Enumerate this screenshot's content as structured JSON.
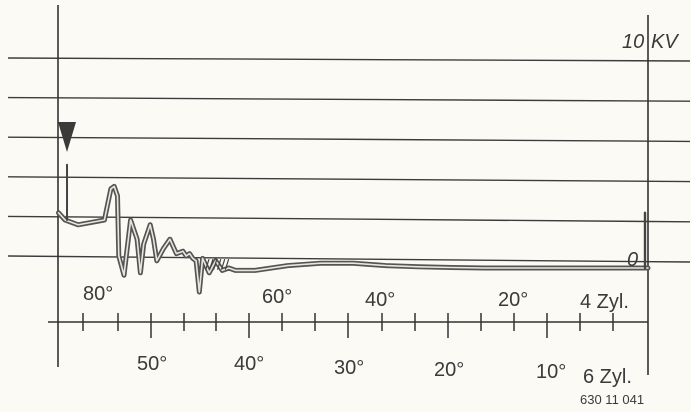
{
  "chart_data": {
    "type": "line",
    "title": "",
    "y_scale_labels": {
      "top": "10",
      "top_unit": "KV",
      "zero": "0"
    },
    "y_range_kv": [
      0,
      10
    ],
    "grid": "horizontal",
    "marker": "triangle-down",
    "series": [
      {
        "x_deg_before_tdc_4cyl": [
          90,
          89,
          87,
          85,
          83,
          82,
          81.5,
          81,
          80.8,
          80,
          79,
          78,
          77.5,
          77,
          76,
          75.5,
          75,
          74,
          73,
          72,
          71,
          70.5,
          70,
          69.5,
          69,
          68.5,
          68,
          67,
          66,
          65,
          64,
          63,
          60,
          55,
          50,
          45,
          40,
          35,
          30,
          25,
          20,
          15,
          10,
          5,
          0
        ],
        "y_kv": [
          2.3,
          2.0,
          1.8,
          1.9,
          2.0,
          3.3,
          3.4,
          3.0,
          0.5,
          -0.3,
          2.0,
          1.2,
          -0.2,
          1.0,
          1.8,
          1.2,
          0.3,
          0.8,
          1.2,
          0.6,
          0.7,
          0.5,
          0.6,
          0.4,
          0.3,
          -1.0,
          0.4,
          -0.2,
          0.3,
          -0.1,
          0.0,
          -0.1,
          -0.1,
          0.1,
          0.2,
          0.2,
          0.1,
          0.05,
          0.02,
          0.0,
          0.0,
          0.0,
          0.0,
          0.0,
          0.0
        ]
      }
    ],
    "axes": [
      {
        "label": "4 Zyl.",
        "ticks": [
          "80°",
          "60°",
          "40°",
          "20°"
        ]
      },
      {
        "label": "6 Zyl.",
        "ticks": [
          "50°",
          "40°",
          "30°",
          "20°",
          "10°"
        ]
      }
    ]
  },
  "footer": {
    "figure_number": "630 11 041"
  }
}
